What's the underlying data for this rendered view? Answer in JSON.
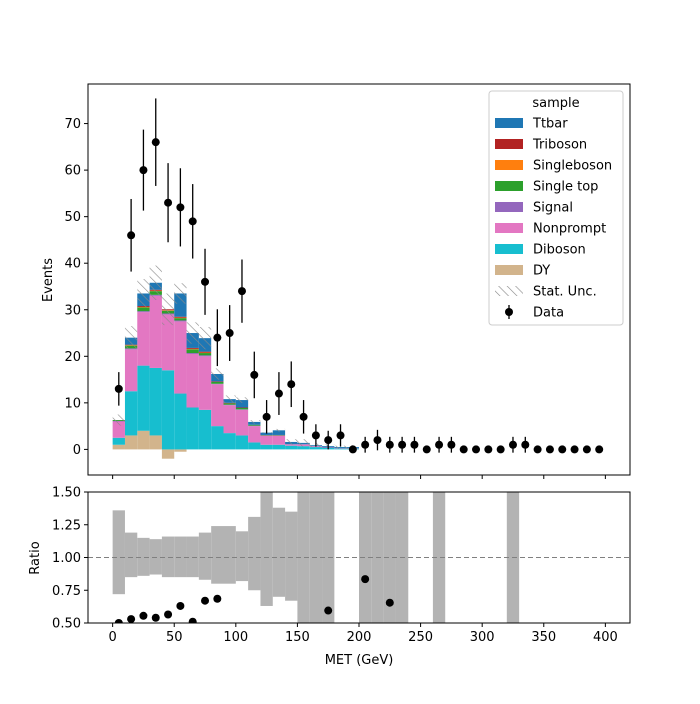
{
  "chart_data": {
    "type": "bar",
    "xlabel": "MET (GeV)",
    "x_edges": [
      0,
      10,
      20,
      30,
      40,
      50,
      60,
      70,
      80,
      90,
      100,
      110,
      120,
      130,
      140,
      150,
      160,
      170,
      180,
      190,
      200,
      210,
      220,
      230,
      240,
      250,
      260,
      270,
      280,
      290,
      300,
      310,
      320,
      330,
      340,
      350,
      360,
      370,
      380,
      390,
      400
    ],
    "xlim": [
      -20,
      420
    ],
    "xticks": [
      0,
      50,
      100,
      150,
      200,
      250,
      300,
      350,
      400
    ],
    "main": {
      "ylabel": "Events",
      "ylim": [
        -5.5,
        78.5
      ],
      "yticks": [
        0,
        10,
        20,
        30,
        40,
        50,
        60,
        70
      ],
      "series": [
        {
          "name": "DY",
          "color": "#d2b48c",
          "values": [
            1.0,
            3.0,
            4.0,
            3.0,
            -2.0,
            -0.5,
            0,
            0,
            0,
            0,
            0,
            0,
            0,
            0,
            0,
            0,
            0,
            0,
            0,
            0,
            0,
            0,
            0,
            0,
            0,
            0,
            0,
            0,
            0,
            0,
            0,
            0,
            0,
            0,
            0,
            0,
            0,
            0,
            0,
            0
          ]
        },
        {
          "name": "Diboson",
          "color": "#17becf",
          "values": [
            1.5,
            9.5,
            14.0,
            14.5,
            17.0,
            12.0,
            9.0,
            8.5,
            5.0,
            3.5,
            3.0,
            1.5,
            1.0,
            1.0,
            0.8,
            0.7,
            0.5,
            0.3,
            0.2,
            0.2,
            0,
            0,
            0,
            0,
            0,
            0,
            0,
            0,
            0,
            0,
            0,
            0,
            0,
            0,
            0,
            0,
            0,
            0,
            0,
            0
          ]
        },
        {
          "name": "Nonprompt",
          "color": "#e377c2",
          "values": [
            3.5,
            9.0,
            11.5,
            15.5,
            12.0,
            15.5,
            11.5,
            11.5,
            9.0,
            6.0,
            5.5,
            3.5,
            2.0,
            2.0,
            0.3,
            0.4,
            0.2,
            0.1,
            0.1,
            0.1,
            0,
            0,
            0,
            0,
            0,
            0,
            0,
            0,
            0,
            0,
            0,
            0,
            0,
            0,
            0,
            0,
            0,
            0,
            0,
            0
          ]
        },
        {
          "name": "Signal",
          "color": "#9467bd",
          "values": [
            0.1,
            0.2,
            0.2,
            0.2,
            0.2,
            0.2,
            0.2,
            0.2,
            0.1,
            0.1,
            0.1,
            0.1,
            0,
            0,
            0,
            0,
            0,
            0,
            0,
            0,
            0,
            0,
            0,
            0,
            0,
            0,
            0,
            0,
            0,
            0,
            0,
            0,
            0,
            0,
            0,
            0,
            0,
            0,
            0,
            0
          ]
        },
        {
          "name": "Single top",
          "color": "#2ca02c",
          "values": [
            0.2,
            0.6,
            0.8,
            0.8,
            0.6,
            0.5,
            0.8,
            0.5,
            0.4,
            0.3,
            0.3,
            0.2,
            0.1,
            0.1,
            0,
            0,
            0,
            0,
            0,
            0,
            0,
            0,
            0,
            0,
            0,
            0,
            0,
            0,
            0,
            0,
            0,
            0,
            0,
            0,
            0,
            0,
            0,
            0,
            0,
            0
          ]
        },
        {
          "name": "Singleboson",
          "color": "#ff7f0e",
          "values": [
            0,
            0.1,
            0.1,
            0.1,
            0.1,
            0.1,
            0.1,
            0.1,
            0,
            0,
            0,
            0,
            0,
            0,
            0,
            0,
            0,
            0,
            0,
            0,
            0,
            0,
            0,
            0,
            0,
            0,
            0,
            0,
            0,
            0,
            0,
            0,
            0,
            0,
            0,
            0,
            0,
            0,
            0,
            0
          ]
        },
        {
          "name": "Triboson",
          "color": "#b22222",
          "values": [
            0,
            0.1,
            0.2,
            0.2,
            0.2,
            0.2,
            0.2,
            0.2,
            0.1,
            0.1,
            0.1,
            0,
            0,
            0,
            0,
            0,
            0,
            0,
            0,
            0,
            0,
            0,
            0,
            0,
            0,
            0,
            0,
            0,
            0,
            0,
            0,
            0,
            0,
            0,
            0,
            0,
            0,
            0,
            0,
            0
          ]
        },
        {
          "name": "Ttbar",
          "color": "#1f77b4",
          "values": [
            0,
            1.5,
            2.7,
            1.5,
            0,
            5.0,
            3.2,
            2.9,
            1.6,
            0.8,
            1.6,
            0.6,
            0.5,
            1.0,
            0.5,
            0.3,
            0.2,
            0.3,
            0.2,
            0.2,
            0,
            0,
            0,
            0,
            0,
            0,
            0,
            0,
            0,
            0,
            0,
            0,
            0,
            0,
            0,
            0,
            0,
            0,
            0,
            0
          ]
        }
      ],
      "stat_unc": [
        1.2,
        2.5,
        3.1,
        3.7,
        3.4,
        2.2,
        2.3,
        2.4,
        1.2,
        0.8,
        0.6,
        0.4,
        0.1,
        0.3,
        0.6,
        0.8,
        0.4,
        0.4,
        0.3,
        0.4,
        0,
        0,
        0,
        0,
        0,
        0,
        0,
        0,
        0,
        0,
        0,
        0,
        0,
        0,
        0,
        0,
        0,
        0,
        0,
        0
      ],
      "data": {
        "name": "Data",
        "x": [
          5,
          15,
          25,
          35,
          45,
          55,
          65,
          75,
          85,
          95,
          105,
          115,
          125,
          135,
          145,
          155,
          165,
          175,
          185,
          195,
          205,
          215,
          225,
          235,
          245,
          255,
          265,
          275,
          285,
          295,
          305,
          315,
          325,
          335,
          345,
          355,
          365,
          375,
          385,
          395
        ],
        "y": [
          13,
          46,
          60,
          66,
          53,
          52,
          49,
          36,
          24,
          25,
          34,
          16,
          7,
          12,
          14,
          7,
          3,
          2,
          3,
          0,
          1,
          2,
          1,
          1,
          1,
          0,
          1,
          1,
          0,
          0,
          0,
          0,
          1,
          1,
          0,
          0,
          0,
          0,
          0,
          0
        ],
        "yerr": [
          3.6,
          7.8,
          8.7,
          9.4,
          8.5,
          8.4,
          8.0,
          7.1,
          6.1,
          6.0,
          6.8,
          5.0,
          3.6,
          4.6,
          4.9,
          3.6,
          2.4,
          2.0,
          2.4,
          0,
          1.7,
          2.2,
          1.7,
          1.7,
          1.7,
          0,
          1.7,
          1.7,
          0,
          0,
          0,
          0,
          1.7,
          1.7,
          0,
          0,
          0,
          0,
          0,
          0
        ]
      }
    },
    "legend": {
      "title": "sample",
      "location": "top-right",
      "entries": [
        "Ttbar",
        "Triboson",
        "Singleboson",
        "Single top",
        "Signal",
        "Nonprompt",
        "Diboson",
        "DY",
        "Stat. Unc.",
        "Data"
      ]
    },
    "ratio": {
      "ylabel": "Ratio",
      "ylim": [
        0.5,
        1.5
      ],
      "yticks": [
        0.5,
        0.75,
        1.0,
        1.25,
        1.5
      ],
      "reference_line": 1.0,
      "unc_band": [
        [
          0.72,
          1.36
        ],
        [
          0.85,
          1.19
        ],
        [
          0.86,
          1.15
        ],
        [
          0.87,
          1.14
        ],
        [
          0.85,
          1.16
        ],
        [
          0.85,
          1.16
        ],
        [
          0.85,
          1.16
        ],
        [
          0.83,
          1.19
        ],
        [
          0.8,
          1.24
        ],
        [
          0.8,
          1.24
        ],
        [
          0.82,
          1.2
        ],
        [
          0.75,
          1.31
        ],
        [
          0.63,
          1.5
        ],
        [
          0.7,
          1.38
        ],
        [
          0.67,
          1.35
        ],
        [
          0.45,
          1.55
        ],
        [
          0.45,
          1.55
        ],
        [
          0.45,
          1.55
        ],
        null,
        null,
        [
          0.45,
          1.55
        ],
        [
          0.45,
          1.55
        ],
        [
          0.45,
          1.55
        ],
        [
          0.45,
          1.55
        ],
        null,
        null,
        [
          0.45,
          1.55
        ],
        null,
        null,
        null,
        null,
        null,
        [
          0.45,
          1.55
        ],
        null,
        null,
        null,
        null,
        null,
        null,
        null
      ],
      "points": [
        {
          "x": 5,
          "y": 0.5
        },
        {
          "x": 15,
          "y": 0.53
        },
        {
          "x": 25,
          "y": 0.555
        },
        {
          "x": 35,
          "y": 0.54
        },
        {
          "x": 45,
          "y": 0.565
        },
        {
          "x": 55,
          "y": 0.63
        },
        {
          "x": 65,
          "y": 0.51
        },
        {
          "x": 75,
          "y": 0.67
        },
        {
          "x": 85,
          "y": 0.685
        },
        {
          "x": 175,
          "y": 0.595
        },
        {
          "x": 205,
          "y": 0.835
        },
        {
          "x": 225,
          "y": 0.655
        }
      ]
    }
  }
}
